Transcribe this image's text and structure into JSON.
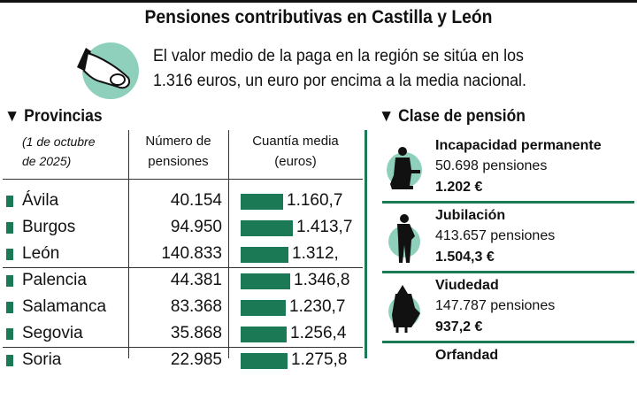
{
  "title": "Pensiones contributivas en Castilla y León",
  "intro": {
    "line1": "El valor medio de la paga en la región se sitúa en los",
    "line2": "1.316 euros, un euro por encima a la media nacional.",
    "icon": "hand-coin-icon"
  },
  "colors": {
    "accent": "#1b7a55",
    "circle": "#8fd0bd"
  },
  "provincias": {
    "heading": "Provincias",
    "date_note_1": "(1 de octubre",
    "date_note_2": "de 2025)",
    "col_num_1": "Número de",
    "col_num_2": "pensiones",
    "col_val_1": "Cuantía media",
    "col_val_2": "(euros)"
  },
  "chart_data": {
    "type": "bar",
    "categories": [
      "Ávila",
      "Burgos",
      "León",
      "Palencia",
      "Salamanca",
      "Segovia",
      "Soria"
    ],
    "pensions": [
      "40.154",
      "94.950",
      "140.833",
      "44.381",
      "83.368",
      "35.868",
      "22.985"
    ],
    "labels": [
      "1.160,7",
      "1.413,7",
      "1.312,",
      "1.346,8",
      "1.230,7",
      "1.256,4",
      "1.275,8"
    ],
    "values": [
      1160.7,
      1413.7,
      1312,
      1346.8,
      1230.7,
      1256.4,
      1275.8
    ]
  },
  "clase": {
    "heading": "Clase de pensión",
    "items": [
      {
        "name": "Incapacidad permanente",
        "count": "50.698 pensiones",
        "amount": "1.202 €",
        "icon": "seated-person-icon"
      },
      {
        "name": "Jubilación",
        "count": "413.657 pensiones",
        "amount": "1.504,3 €",
        "icon": "elderly-man-icon"
      },
      {
        "name": "Viudedad",
        "count": "147.787 pensiones",
        "amount": "937,2 €",
        "icon": "widow-icon"
      },
      {
        "name": "Orfandad"
      }
    ]
  }
}
